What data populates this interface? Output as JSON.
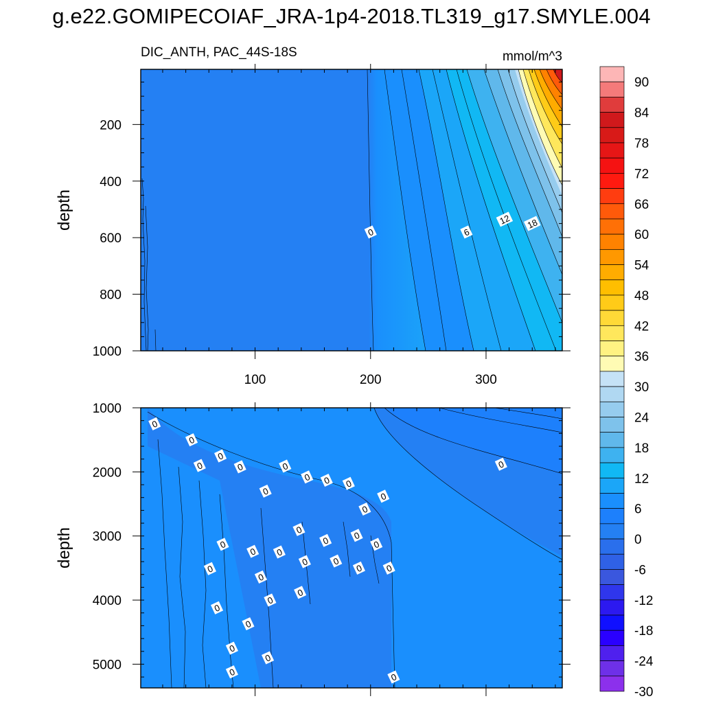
{
  "figure": {
    "title": "g.e22.GOMIPECOIAF_JRA-1p4-2018.TL319_g17.SMYLE.004"
  },
  "chart_data": [
    {
      "type": "heatmap",
      "panel": "upper",
      "subtitle": "DIC_ANTH, PAC_44S-18S",
      "units": "mmol/m^3",
      "ylabel": "depth",
      "xlabel": "",
      "xlim": [
        1,
        366
      ],
      "ylim": [
        1000,
        5
      ],
      "y_reversed": true,
      "xticks": [
        100,
        200,
        300
      ],
      "yticks": [
        200,
        400,
        600,
        800,
        1000
      ],
      "contour_labels": [
        {
          "text": "0",
          "x": 200,
          "y": 580
        },
        {
          "text": "6",
          "x": 283,
          "y": 580
        },
        {
          "text": "12",
          "x": 316,
          "y": 535
        },
        {
          "text": "18",
          "x": 340,
          "y": 550
        }
      ]
    },
    {
      "type": "heatmap",
      "panel": "lower",
      "ylabel": "depth",
      "xlabel": "",
      "xlim": [
        1,
        366
      ],
      "ylim": [
        5370,
        1000
      ],
      "y_reversed": true,
      "xticks": [
        100,
        200,
        300
      ],
      "yticks": [
        1000,
        2000,
        3000,
        4000,
        5000
      ],
      "contour_labels": [
        {
          "text": "0",
          "x": 13,
          "y": 1250
        },
        {
          "text": "0",
          "x": 45,
          "y": 1500
        },
        {
          "text": "0",
          "x": 52,
          "y": 1900
        },
        {
          "text": "0",
          "x": 70,
          "y": 1750
        },
        {
          "text": "0",
          "x": 87,
          "y": 1920
        },
        {
          "text": "0",
          "x": 109,
          "y": 2300
        },
        {
          "text": "0",
          "x": 126,
          "y": 1910
        },
        {
          "text": "0",
          "x": 145,
          "y": 2080
        },
        {
          "text": "0",
          "x": 162,
          "y": 2130
        },
        {
          "text": "0",
          "x": 181,
          "y": 2180
        },
        {
          "text": "0",
          "x": 195,
          "y": 2580
        },
        {
          "text": "0",
          "x": 211,
          "y": 2380
        },
        {
          "text": "0",
          "x": 313,
          "y": 1880
        },
        {
          "text": "0",
          "x": 138,
          "y": 2900
        },
        {
          "text": "0",
          "x": 72,
          "y": 3130
        },
        {
          "text": "0",
          "x": 98,
          "y": 3240
        },
        {
          "text": "0",
          "x": 121,
          "y": 3250
        },
        {
          "text": "0",
          "x": 161,
          "y": 3070
        },
        {
          "text": "0",
          "x": 188,
          "y": 2990
        },
        {
          "text": "0",
          "x": 205,
          "y": 3130
        },
        {
          "text": "0",
          "x": 61,
          "y": 3510
        },
        {
          "text": "0",
          "x": 105,
          "y": 3640
        },
        {
          "text": "0",
          "x": 143,
          "y": 3400
        },
        {
          "text": "0",
          "x": 170,
          "y": 3390
        },
        {
          "text": "0",
          "x": 190,
          "y": 3500
        },
        {
          "text": "0",
          "x": 216,
          "y": 3500
        },
        {
          "text": "0",
          "x": 139,
          "y": 3880
        },
        {
          "text": "0",
          "x": 113,
          "y": 4000
        },
        {
          "text": "0",
          "x": 67,
          "y": 4120
        },
        {
          "text": "0",
          "x": 94,
          "y": 4370
        },
        {
          "text": "0",
          "x": 80,
          "y": 4750
        },
        {
          "text": "0",
          "x": 111,
          "y": 4900
        },
        {
          "text": "0",
          "x": 80,
          "y": 5120
        },
        {
          "text": "0",
          "x": 220,
          "y": 5200
        }
      ]
    }
  ],
  "colorbar": {
    "labels": [
      "90",
      "84",
      "78",
      "72",
      "66",
      "60",
      "54",
      "48",
      "42",
      "36",
      "30",
      "24",
      "18",
      "12",
      "6",
      "0",
      "-6",
      "-12",
      "-18",
      "-24",
      "-30"
    ],
    "colors": [
      "#FDB6B6",
      "#F47A7A",
      "#E03C3C",
      "#D0191C",
      "#D81A18",
      "#E61616",
      "#F51212",
      "#FF1A10",
      "#FF3D10",
      "#FF5A0A",
      "#FF7006",
      "#FF8200",
      "#FF9800",
      "#FFAC00",
      "#FFBE00",
      "#FFCB18",
      "#FFD937",
      "#FFE75C",
      "#FFF282",
      "#FFFBB4",
      "#C5E2F6",
      "#B0D8F2",
      "#96CCEE",
      "#7EC2EB",
      "#60B8EB",
      "#3EB2F0",
      "#11B8F4",
      "#1BA6F8",
      "#1A8FFD",
      "#1D80FC",
      "#2480F3",
      "#2A6FEC",
      "#2F61E6",
      "#3A57DE",
      "#2F36EC",
      "#2C19F0",
      "#1010FF",
      "#2A00FF",
      "#4F20EE",
      "#6E30E8",
      "#8C30EC"
    ]
  }
}
